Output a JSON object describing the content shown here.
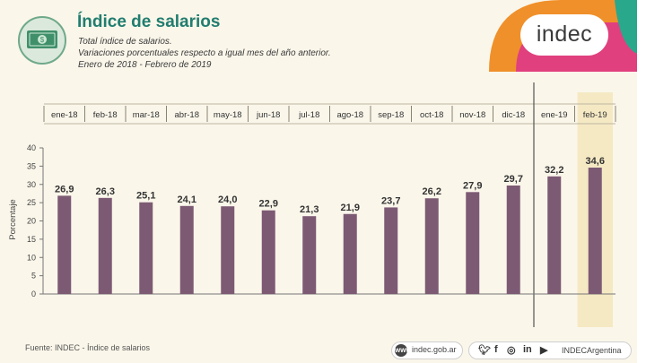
{
  "header": {
    "title": "Índice de salarios",
    "subtitle1": "Total índice de salarios.",
    "subtitle2": "Variaciones porcentuales respecto a igual mes del año anterior.",
    "subtitle3": "Enero de 2018 - Febrero de 2019",
    "logo_text": "indec",
    "icon": "money-bill-icon"
  },
  "colors": {
    "bar": "#7d5a74",
    "highlight": "#f3e6bd",
    "title": "#217d6f",
    "logo_orange": "#f0902a",
    "logo_pink": "#e0407e",
    "logo_green": "#2aa88b"
  },
  "chart_data": {
    "type": "bar",
    "categories": [
      "ene-18",
      "feb-18",
      "mar-18",
      "abr-18",
      "may-18",
      "jun-18",
      "jul-18",
      "ago-18",
      "sep-18",
      "oct-18",
      "nov-18",
      "dic-18",
      "ene-19",
      "feb-19"
    ],
    "values": [
      26.9,
      26.3,
      25.1,
      24.1,
      24.0,
      22.9,
      21.3,
      21.9,
      23.7,
      26.2,
      27.9,
      29.7,
      32.2,
      34.6
    ],
    "data_labels": [
      "26,9",
      "26,3",
      "25,1",
      "24,1",
      "24,0",
      "22,9",
      "21,3",
      "21,9",
      "23,7",
      "26,2",
      "27,9",
      "29,7",
      "32,2",
      "34,6"
    ],
    "ylabel": "Porcentaje",
    "ylim": [
      0,
      40
    ],
    "yticks": [
      0,
      5,
      10,
      15,
      20,
      25,
      30,
      35,
      40
    ],
    "highlight_category": "feb-19",
    "year_divider_after": "dic-18",
    "grid": false
  },
  "footer": {
    "source": "Fuente: INDEC - Índice de salarios",
    "website": "indec.gob.ar",
    "social_handle": "INDECArgentina",
    "social_icons": [
      "twitter-icon",
      "facebook-icon",
      "instagram-icon",
      "linkedin-icon",
      "youtube-icon"
    ]
  }
}
